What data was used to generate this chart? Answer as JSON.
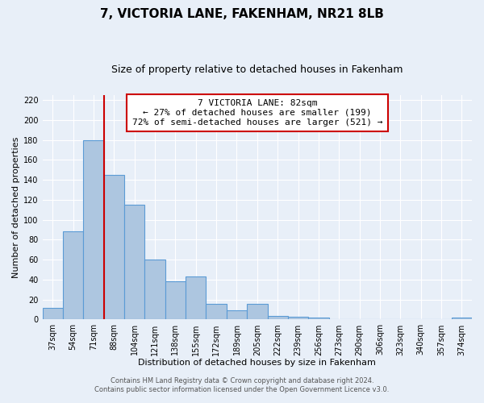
{
  "title": "7, VICTORIA LANE, FAKENHAM, NR21 8LB",
  "subtitle": "Size of property relative to detached houses in Fakenham",
  "xlabel": "Distribution of detached houses by size in Fakenham",
  "ylabel": "Number of detached properties",
  "footer_line1": "Contains HM Land Registry data © Crown copyright and database right 2024.",
  "footer_line2": "Contains public sector information licensed under the Open Government Licence v3.0.",
  "annotation_title": "7 VICTORIA LANE: 82sqm",
  "annotation_line1": "← 27% of detached houses are smaller (199)",
  "annotation_line2": "72% of semi-detached houses are larger (521) →",
  "bar_labels": [
    "37sqm",
    "54sqm",
    "71sqm",
    "88sqm",
    "104sqm",
    "121sqm",
    "138sqm",
    "155sqm",
    "172sqm",
    "189sqm",
    "205sqm",
    "222sqm",
    "239sqm",
    "256sqm",
    "273sqm",
    "290sqm",
    "306sqm",
    "323sqm",
    "340sqm",
    "357sqm",
    "374sqm"
  ],
  "bar_values": [
    12,
    88,
    180,
    145,
    115,
    60,
    38,
    43,
    16,
    9,
    16,
    4,
    3,
    2,
    0,
    0,
    0,
    0,
    0,
    0,
    2
  ],
  "bar_color": "#adc6e0",
  "bar_edge_color": "#5b9bd5",
  "reference_line_color": "#cc0000",
  "ylim": [
    0,
    225
  ],
  "yticks": [
    0,
    20,
    40,
    60,
    80,
    100,
    120,
    140,
    160,
    180,
    200,
    220
  ],
  "bg_color": "#e8eff8",
  "plot_bg_color": "#e8eff8",
  "annotation_box_color": "#ffffff",
  "annotation_box_edge": "#cc0000",
  "grid_color": "#ffffff",
  "title_fontsize": 11,
  "subtitle_fontsize": 9,
  "label_fontsize": 8,
  "tick_fontsize": 7,
  "annotation_fontsize": 8,
  "footer_fontsize": 6
}
